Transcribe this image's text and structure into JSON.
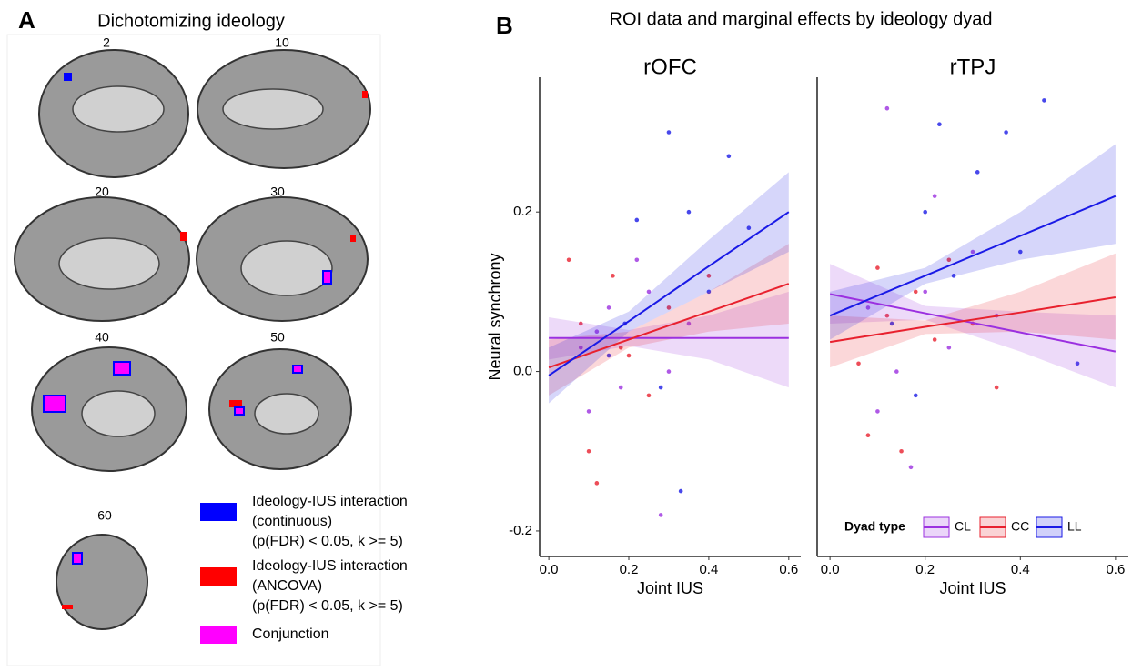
{
  "panel_a": {
    "label": "A",
    "title": "Dichotomizing ideology",
    "slice_labels": [
      "2",
      "10",
      "20",
      "30",
      "40",
      "50",
      "60"
    ],
    "legend": [
      {
        "color": "#0000ff",
        "lines": [
          "Ideology-IUS interaction",
          "(continuous)",
          "(p(FDR) < 0.05, k >= 5)"
        ]
      },
      {
        "color": "#ff0000",
        "lines": [
          "Ideology-IUS interaction",
          "(ANCOVA)",
          "(p(FDR) < 0.05, k >= 5)"
        ]
      },
      {
        "color": "#ff00ff",
        "lines": [
          "Conjunction"
        ]
      }
    ]
  },
  "panel_b": {
    "label": "B",
    "title": "ROI data and marginal effects by ideology dyad"
  },
  "chart_data": [
    {
      "type": "line",
      "title": "rOFC",
      "x_label": "Joint IUS",
      "y_label": "Neural synchrony",
      "xlim": [
        -0.023,
        0.63
      ],
      "xticks": [
        {
          "value": 0,
          "label": "0.0"
        },
        0.2,
        0.4,
        0.6
      ],
      "ylim": [
        -0.232,
        0.369
      ],
      "yticks": [
        -0.2,
        {
          "value": 0,
          "label": "0.0"
        },
        0.2
      ],
      "series": [
        {
          "color": "#9b30e0",
          "x": [
            0,
            0.2,
            0.4,
            0.6
          ],
          "values": [
            0.042,
            0.042,
            0.042,
            0.042
          ],
          "band_lower": [
            0.015,
            0.032,
            0.015,
            -0.02
          ],
          "band_upper": [
            0.068,
            0.052,
            0.07,
            0.1
          ],
          "points": {
            "x": [
              0.12,
              0.18,
              0.25,
              0.08,
              0.3,
              0.22,
              0.15,
              0.35,
              0.1,
              0.28
            ],
            "y": [
              0.05,
              -0.02,
              0.1,
              0.03,
              0.0,
              0.14,
              0.08,
              0.06,
              -0.05,
              -0.18
            ]
          }
        },
        {
          "color": "#e8212e",
          "x": [
            0,
            0.2,
            0.4,
            0.6
          ],
          "values": [
            0.005,
            0.04,
            0.075,
            0.11
          ],
          "band_lower": [
            -0.03,
            0.03,
            0.05,
            0.06
          ],
          "band_upper": [
            0.04,
            0.05,
            0.1,
            0.16
          ],
          "points": {
            "x": [
              0.05,
              0.1,
              0.2,
              0.16,
              0.3,
              0.12,
              0.25,
              0.08,
              0.4,
              0.18
            ],
            "y": [
              0.14,
              -0.1,
              0.02,
              0.12,
              0.08,
              -0.14,
              -0.03,
              0.06,
              0.12,
              0.03
            ]
          }
        },
        {
          "color": "#1a1ae6",
          "x": [
            0,
            0.2,
            0.4,
            0.6
          ],
          "values": [
            -0.005,
            0.063,
            0.132,
            0.2
          ],
          "band_lower": [
            -0.04,
            0.05,
            0.1,
            0.15
          ],
          "band_upper": [
            0.03,
            0.075,
            0.165,
            0.25
          ],
          "points": {
            "x": [
              0.3,
              0.45,
              0.35,
              0.22,
              0.4,
              0.15,
              0.28,
              0.5,
              0.33,
              0.19
            ],
            "y": [
              0.3,
              0.27,
              0.2,
              0.19,
              0.1,
              0.02,
              -0.02,
              0.18,
              -0.15,
              0.06
            ]
          }
        }
      ]
    },
    {
      "type": "line",
      "title": "rTPJ",
      "x_label": "Joint IUS",
      "legend_title": "Dyad type",
      "xlim": [
        -0.027,
        0.627
      ],
      "xticks": [
        {
          "value": 0,
          "label": "0.0"
        },
        0.2,
        0.4,
        0.6
      ],
      "ylim": [
        -0.232,
        0.369
      ],
      "series": [
        {
          "name": "CL",
          "color": "#9b30e0",
          "x": [
            0,
            0.2,
            0.4,
            0.6
          ],
          "values": [
            0.097,
            0.073,
            0.049,
            0.025
          ],
          "band_lower": [
            0.06,
            0.065,
            0.025,
            -0.02
          ],
          "band_upper": [
            0.135,
            0.082,
            0.075,
            0.07
          ],
          "points": {
            "x": [
              0.12,
              0.2,
              0.1,
              0.25,
              0.3,
              0.17,
              0.08,
              0.35,
              0.22,
              0.14
            ],
            "y": [
              0.33,
              0.1,
              -0.05,
              0.03,
              0.15,
              -0.12,
              0.08,
              0.07,
              0.22,
              0.0
            ]
          }
        },
        {
          "name": "CC",
          "color": "#e8212e",
          "x": [
            0,
            0.2,
            0.4,
            0.6
          ],
          "values": [
            0.037,
            0.056,
            0.074,
            0.093
          ],
          "band_lower": [
            0.005,
            0.047,
            0.05,
            0.04
          ],
          "band_upper": [
            0.07,
            0.064,
            0.1,
            0.148
          ],
          "points": {
            "x": [
              0.06,
              0.1,
              0.15,
              0.22,
              0.3,
              0.18,
              0.35,
              0.08,
              0.25,
              0.12
            ],
            "y": [
              0.01,
              0.13,
              -0.1,
              0.04,
              0.06,
              0.1,
              -0.02,
              -0.08,
              0.14,
              0.07
            ]
          }
        },
        {
          "name": "LL",
          "color": "#1a1ae6",
          "x": [
            0,
            0.2,
            0.4,
            0.6
          ],
          "values": [
            0.07,
            0.12,
            0.17,
            0.22
          ],
          "band_lower": [
            0.04,
            0.11,
            0.14,
            0.16
          ],
          "band_upper": [
            0.1,
            0.13,
            0.2,
            0.285
          ],
          "points": {
            "x": [
              0.45,
              0.37,
              0.2,
              0.26,
              0.13,
              0.52,
              0.31,
              0.4,
              0.18,
              0.23
            ],
            "y": [
              0.34,
              0.3,
              0.2,
              0.12,
              0.06,
              0.01,
              0.25,
              0.15,
              -0.03,
              0.31
            ]
          }
        }
      ]
    }
  ]
}
